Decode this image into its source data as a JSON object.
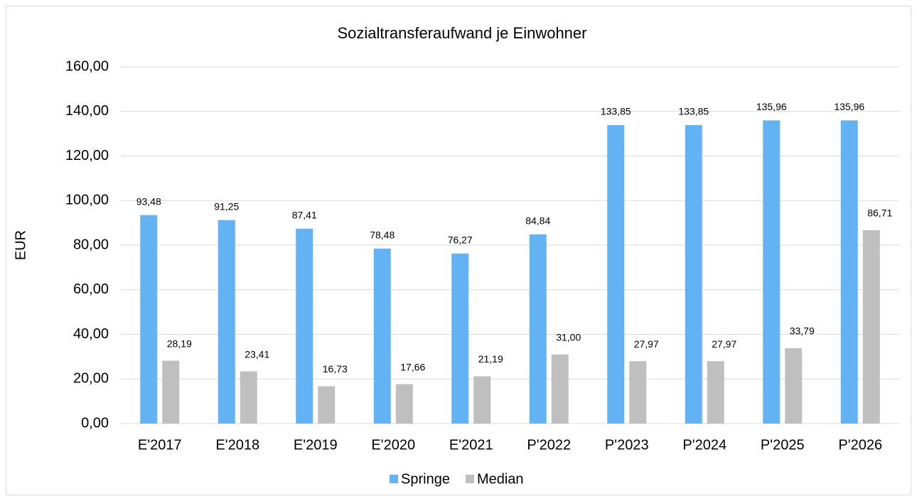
{
  "chart_data": {
    "type": "bar",
    "title": "Sozialtransferaufwand je Einwohner",
    "y_label": "EUR",
    "categories": [
      "E'2017",
      "E'2018",
      "E'2019",
      "E'2020",
      "E'2021",
      "P'2022",
      "P'2023",
      "P'2024",
      "P'2025",
      "P'2026"
    ],
    "series": [
      {
        "name": "Springe",
        "color": "#63b2f4",
        "values": [
          93.48,
          91.25,
          87.41,
          78.48,
          76.27,
          84.84,
          133.85,
          133.85,
          135.96,
          135.96
        ],
        "value_labels": [
          "93,48",
          "91,25",
          "87,41",
          "78,48",
          "76,27",
          "84,84",
          "133,85",
          "133,85",
          "135,96",
          "135,96"
        ]
      },
      {
        "name": "Median",
        "color": "#bfbfbf",
        "values": [
          28.19,
          23.41,
          16.73,
          17.66,
          21.19,
          31.0,
          27.97,
          27.97,
          33.79,
          86.71
        ],
        "value_labels": [
          "28,19",
          "23,41",
          "16,73",
          "17,66",
          "21,19",
          "31,00",
          "27,97",
          "27,97",
          "33,79",
          "86,71"
        ]
      }
    ],
    "ylim": [
      0,
      160
    ],
    "yticks": [
      {
        "value": 0,
        "label": "0,00"
      },
      {
        "value": 20,
        "label": "20,00"
      },
      {
        "value": 40,
        "label": "40,00"
      },
      {
        "value": 60,
        "label": "60,00"
      },
      {
        "value": 80,
        "label": "80,00"
      },
      {
        "value": 100,
        "label": "100,00"
      },
      {
        "value": 120,
        "label": "120,00"
      },
      {
        "value": 140,
        "label": "140,00"
      },
      {
        "value": 160,
        "label": "160,00"
      }
    ],
    "grid": true,
    "legend": "bottom"
  }
}
